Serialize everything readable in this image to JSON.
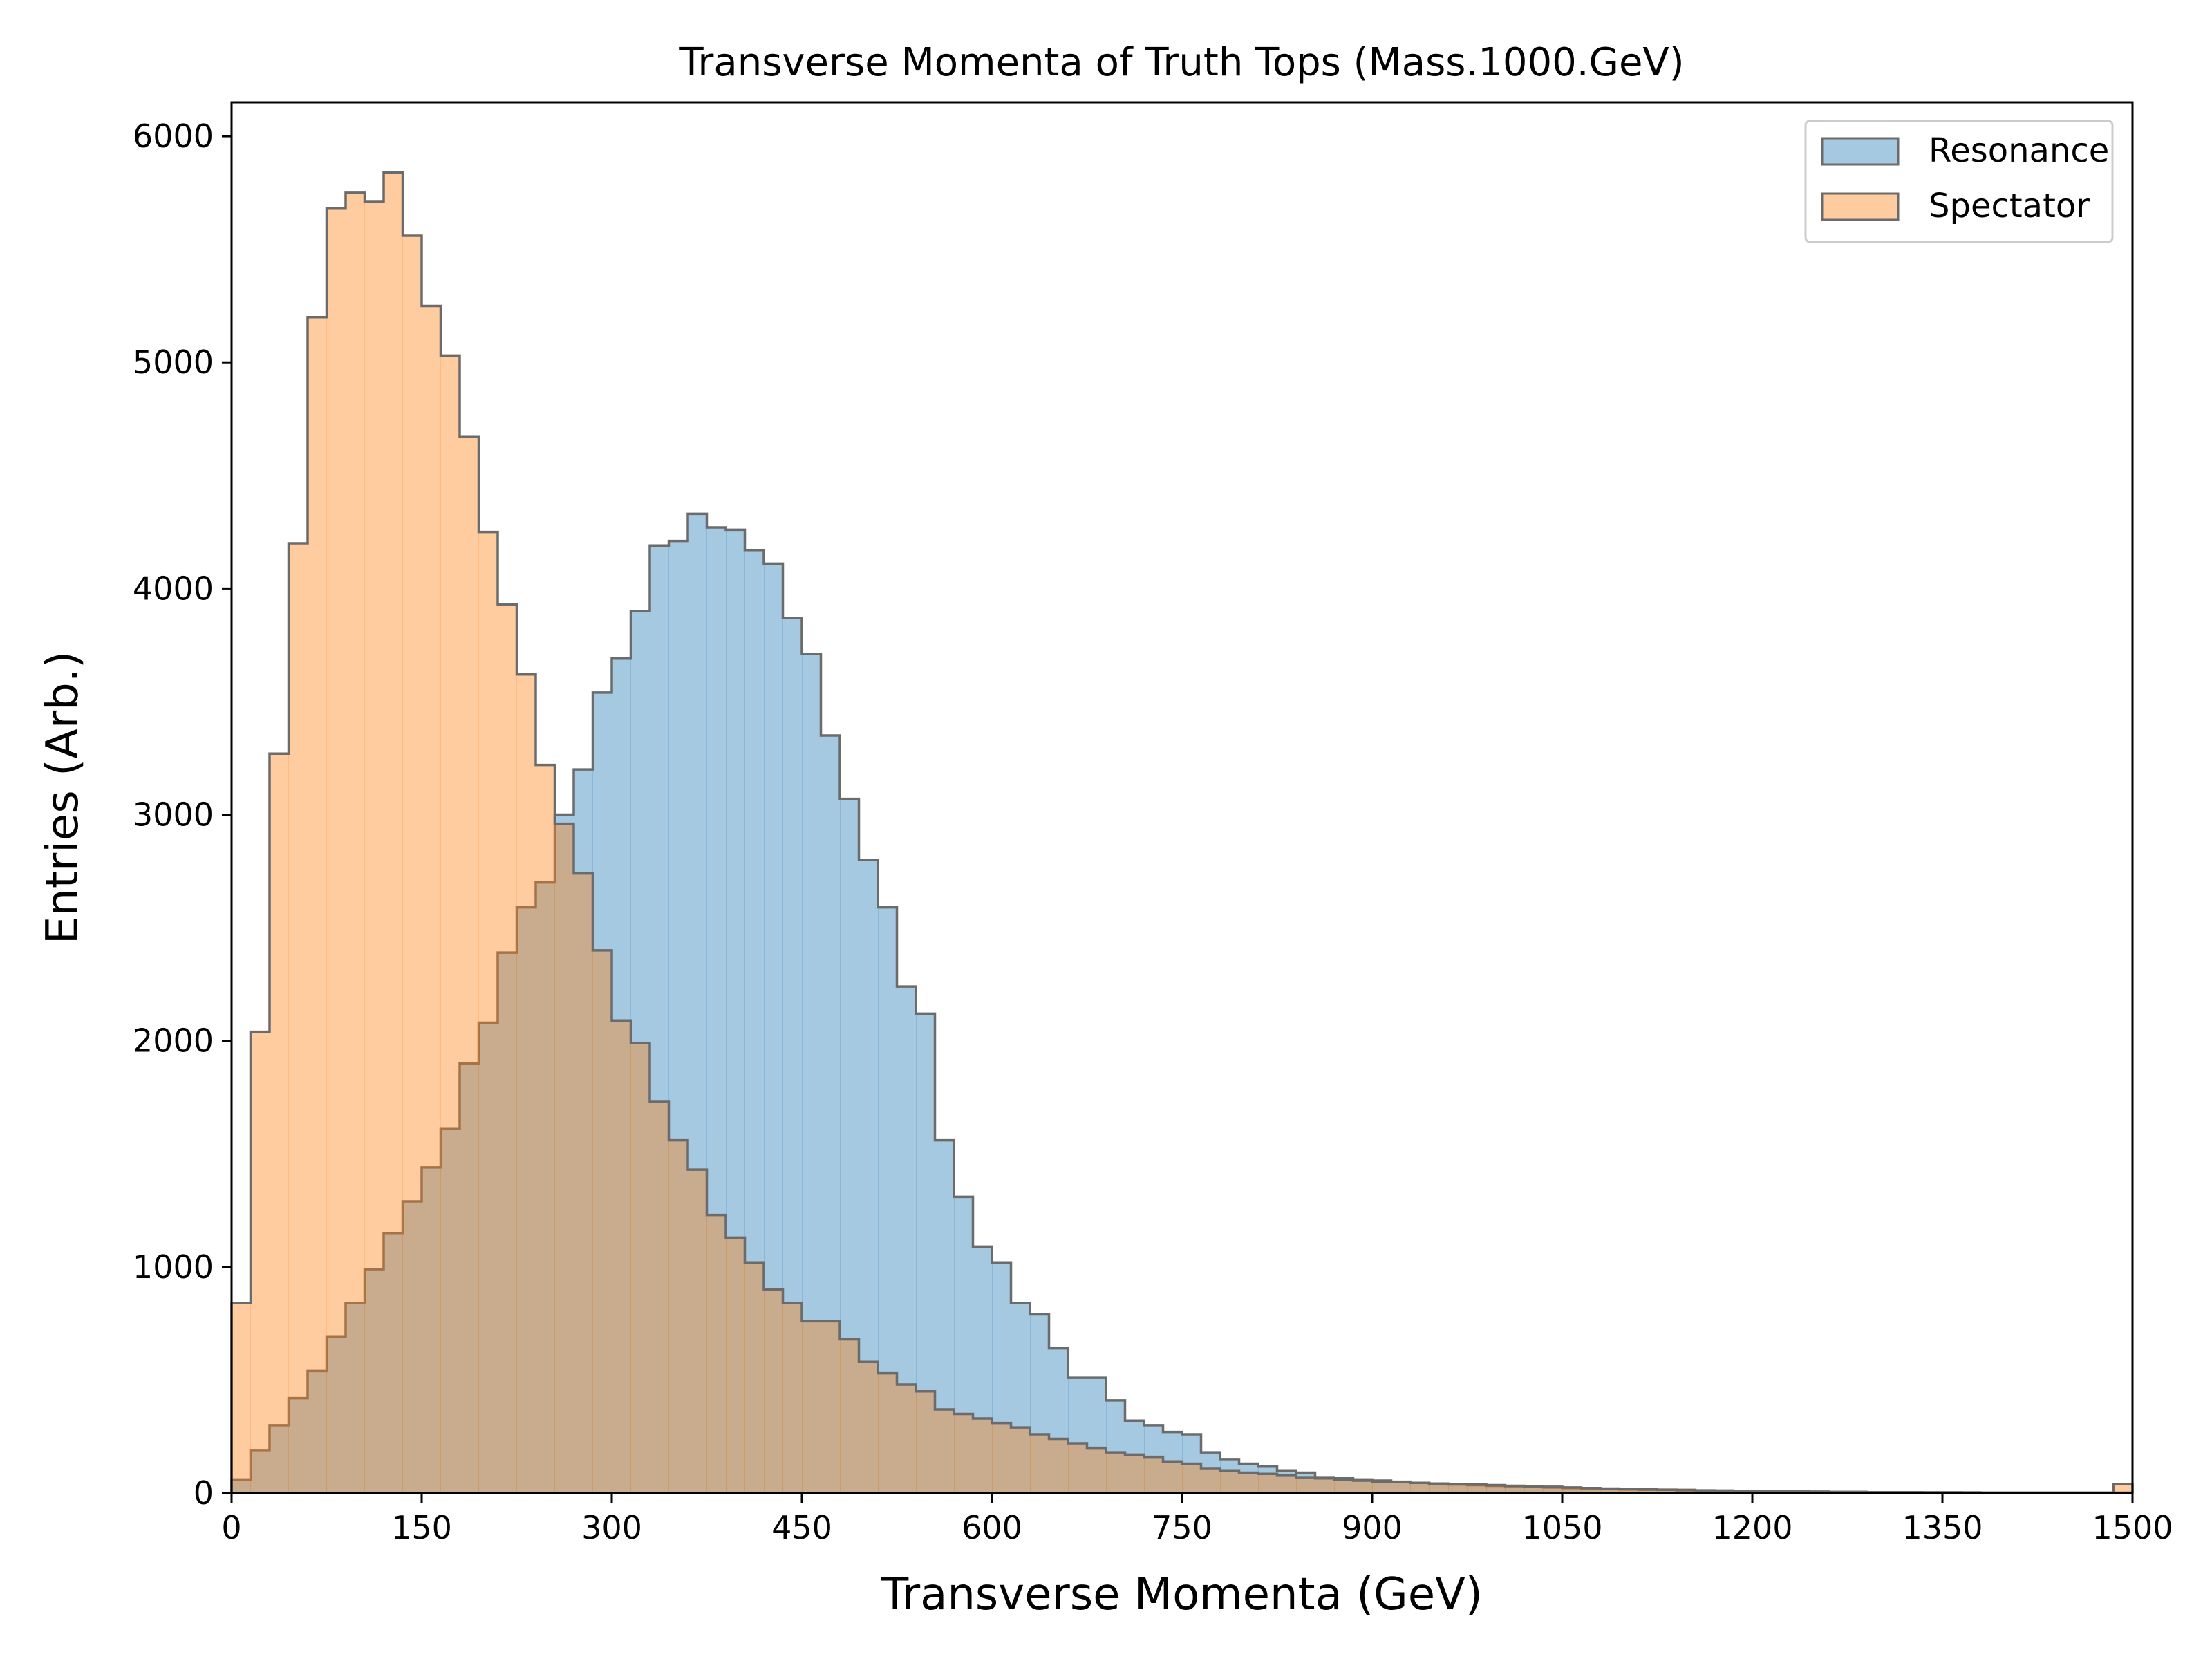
{
  "chart_data": {
    "type": "histogram",
    "title": "Transverse Momenta of Truth Tops (Mass.1000.GeV)",
    "xlabel": "Transverse Momenta (GeV)",
    "ylabel": "Entries (Arb.)",
    "xlim": [
      0,
      1500
    ],
    "ylim": [
      0,
      6150
    ],
    "bin_width": 15,
    "x_ticks": [
      "0",
      "150",
      "300",
      "450",
      "600",
      "750",
      "900",
      "1050",
      "1200",
      "1350",
      "1500"
    ],
    "y_ticks": [
      "0",
      "1000",
      "2000",
      "3000",
      "4000",
      "5000",
      "6000"
    ],
    "legend_position": "top-right",
    "grid": false,
    "series": [
      {
        "name": "Resonance",
        "color": "#1f77b4",
        "values": [
          60,
          190,
          300,
          420,
          540,
          690,
          840,
          990,
          1150,
          1290,
          1440,
          1610,
          1900,
          2080,
          2390,
          2590,
          2700,
          3000,
          3200,
          3540,
          3690,
          3900,
          4190,
          4210,
          4330,
          4270,
          4260,
          4170,
          4110,
          3870,
          3710,
          3350,
          3070,
          2800,
          2590,
          2240,
          2120,
          1560,
          1310,
          1090,
          1020,
          840,
          790,
          640,
          510,
          510,
          410,
          320,
          300,
          270,
          260,
          180,
          150,
          130,
          120,
          100,
          90,
          70,
          65,
          60,
          55,
          50,
          45,
          40,
          38,
          35,
          32,
          30,
          28,
          25,
          22,
          20,
          18,
          16,
          15,
          14,
          12,
          10,
          10,
          9,
          8,
          7,
          6,
          6,
          5,
          5,
          4,
          4,
          4,
          3,
          3,
          3,
          2,
          2,
          2,
          2,
          2,
          2,
          2,
          2
        ]
      },
      {
        "name": "Spectator",
        "color": "#ff7f0e",
        "values": [
          840,
          2040,
          3270,
          4200,
          5200,
          5680,
          5750,
          5710,
          5840,
          5560,
          5250,
          5030,
          4670,
          4250,
          3930,
          3620,
          3220,
          2960,
          2740,
          2400,
          2090,
          1990,
          1730,
          1560,
          1430,
          1230,
          1130,
          1020,
          900,
          840,
          760,
          760,
          680,
          580,
          530,
          480,
          450,
          370,
          350,
          330,
          310,
          290,
          260,
          240,
          220,
          200,
          180,
          170,
          160,
          140,
          130,
          110,
          100,
          90,
          85,
          80,
          70,
          65,
          60,
          55,
          50,
          48,
          45,
          42,
          40,
          38,
          35,
          32,
          30,
          28,
          25,
          22,
          20,
          18,
          16,
          15,
          14,
          12,
          11,
          10,
          9,
          8,
          7,
          6,
          5,
          5,
          4,
          4,
          3,
          3,
          3,
          2,
          2,
          2,
          2,
          2,
          2,
          2,
          2,
          40
        ]
      }
    ]
  }
}
